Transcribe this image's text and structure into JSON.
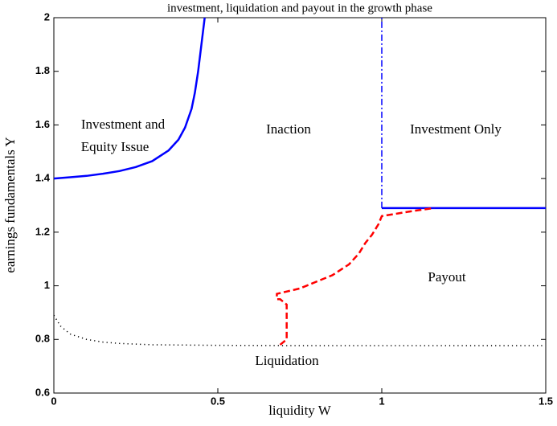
{
  "chart_data": {
    "type": "line",
    "title": "investment, liquidation and payout in the growth phase",
    "xlabel": "liquidity W",
    "ylabel": "earnings fundamentals Y",
    "xlim": [
      0,
      1.5
    ],
    "ylim": [
      0.6,
      2
    ],
    "xticks": [
      0,
      0.5,
      1,
      1.5
    ],
    "yticks": [
      0.6,
      0.8,
      1,
      1.2,
      1.4,
      1.6,
      1.8,
      2
    ],
    "series": [
      {
        "color": "#0000ff",
        "style": "solid",
        "x": [
          0,
          0.05,
          0.1,
          0.15,
          0.2,
          0.25,
          0.3,
          0.35,
          0.38,
          0.4,
          0.42,
          0.43,
          0.44,
          0.45,
          0.46
        ],
        "values": [
          1.4,
          1.405,
          1.41,
          1.418,
          1.428,
          1.443,
          1.465,
          1.505,
          1.545,
          1.59,
          1.66,
          1.72,
          1.8,
          1.9,
          2.0
        ]
      },
      {
        "color": "#0000ff",
        "style": "dashdot",
        "x": [
          1,
          1
        ],
        "values": [
          1.29,
          2
        ]
      },
      {
        "color": "#0000ff",
        "style": "solid",
        "x": [
          1,
          1.5
        ],
        "values": [
          1.29,
          1.29
        ]
      },
      {
        "color": "#ff0000",
        "style": "dashed",
        "x": [
          0.69,
          0.71,
          0.71,
          0.69,
          0.68,
          0.68,
          0.75,
          0.85,
          0.9,
          0.93,
          0.95,
          0.97,
          0.99,
          1.0,
          1.05,
          1.1,
          1.16
        ],
        "values": [
          0.78,
          0.8,
          0.93,
          0.95,
          0.95,
          0.97,
          0.99,
          1.04,
          1.08,
          1.12,
          1.16,
          1.19,
          1.23,
          1.26,
          1.27,
          1.28,
          1.29
        ]
      },
      {
        "color": "#000000",
        "style": "dotted",
        "x": [
          0,
          0.02,
          0.05,
          0.1,
          0.15,
          0.2,
          0.3,
          0.5,
          0.7,
          1.0,
          1.5
        ],
        "values": [
          0.89,
          0.85,
          0.82,
          0.8,
          0.79,
          0.785,
          0.78,
          0.778,
          0.777,
          0.777,
          0.777
        ]
      }
    ],
    "annotations": [
      "Investment and",
      "Equity Issue",
      "Inaction",
      "Investment Only",
      "Payout",
      "Liquidation"
    ]
  }
}
